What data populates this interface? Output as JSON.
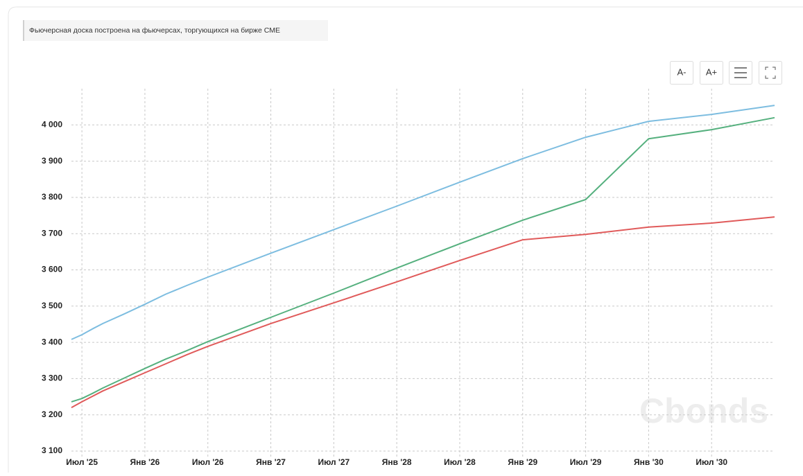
{
  "note": "Фьючерсная доска построена на фьючерсах, торгующихся на бирже CME",
  "toolbar": {
    "decrease": "A-",
    "increase": "A+"
  },
  "chart_data": {
    "type": "line",
    "watermark": "Cbonds",
    "x": [
      "2025-06",
      "2025-07",
      "2025-08",
      "2025-09",
      "2025-11",
      "2026-01",
      "2026-03",
      "2026-05",
      "2026-07",
      "2027-01",
      "2027-07",
      "2028-01",
      "2028-07",
      "2029-01",
      "2029-07",
      "2030-01",
      "2030-07",
      "2031-01"
    ],
    "series": [
      {
        "color": "#7dbde0",
        "values": [
          3408,
          3421,
          3437,
          3452,
          3478,
          3505,
          3533,
          3557,
          3580,
          3646,
          3711,
          3776,
          3842,
          3907,
          3966,
          4010,
          4029,
          4054
        ]
      },
      {
        "color": "#55b07e",
        "values": [
          3236,
          3245,
          3259,
          3274,
          3301,
          3328,
          3354,
          3377,
          3402,
          3469,
          3536,
          3605,
          3672,
          3737,
          3794,
          3962,
          3987,
          4020
        ]
      },
      {
        "color": "#e05a5a",
        "values": [
          3220,
          3236,
          3251,
          3266,
          3291,
          3316,
          3341,
          3366,
          3389,
          3452,
          3509,
          3567,
          3626,
          3683,
          3698,
          3718,
          3729,
          3746
        ]
      }
    ],
    "xlim": [
      "2025-06",
      "2031-01"
    ],
    "xticks": [
      {
        "value": "2025-07",
        "label": "Июл '25"
      },
      {
        "value": "2026-01",
        "label": "Янв '26"
      },
      {
        "value": "2026-07",
        "label": "Июл '26"
      },
      {
        "value": "2027-01",
        "label": "Янв '27"
      },
      {
        "value": "2027-07",
        "label": "Июл '27"
      },
      {
        "value": "2028-01",
        "label": "Янв '28"
      },
      {
        "value": "2028-07",
        "label": "Июл '28"
      },
      {
        "value": "2029-01",
        "label": "Янв '29"
      },
      {
        "value": "2029-07",
        "label": "Июл '29"
      },
      {
        "value": "2030-01",
        "label": "Янв '30"
      },
      {
        "value": "2030-07",
        "label": "Июл '30"
      }
    ],
    "ylim": [
      3100,
      4100
    ],
    "yticks": [
      {
        "value": 3100,
        "label": "3 100"
      },
      {
        "value": 3200,
        "label": "3 200"
      },
      {
        "value": 3300,
        "label": "3 300"
      },
      {
        "value": 3400,
        "label": "3 400"
      },
      {
        "value": 3500,
        "label": "3 500"
      },
      {
        "value": 3600,
        "label": "3 600"
      },
      {
        "value": 3700,
        "label": "3 700"
      },
      {
        "value": 3800,
        "label": "3 800"
      },
      {
        "value": 3900,
        "label": "3 900"
      },
      {
        "value": 4000,
        "label": "4 000"
      }
    ],
    "grid": true
  }
}
